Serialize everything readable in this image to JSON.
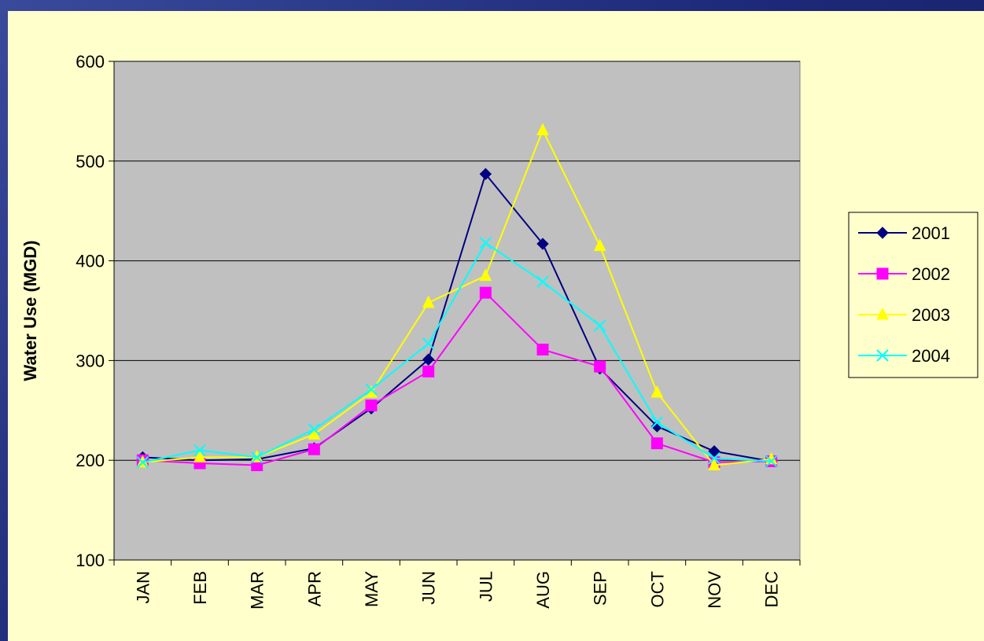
{
  "chart_data": {
    "type": "line",
    "title": "",
    "xlabel": "",
    "ylabel": "Water Use (MGD)",
    "categories": [
      "JAN",
      "FEB",
      "MAR",
      "APR",
      "MAY",
      "JUN",
      "JUL",
      "AUG",
      "SEP",
      "OCT",
      "NOV",
      "DEC"
    ],
    "ylim": [
      100,
      600
    ],
    "yticks": [
      "100",
      "200",
      "300",
      "400",
      "500",
      "600"
    ],
    "grid": true,
    "legend_position": "right",
    "plot_background": "#c0c0c0",
    "series": [
      {
        "name": "2001",
        "color": "#000080",
        "marker": "diamond",
        "values": [
          203,
          200,
          201,
          212,
          252,
          301,
          487,
          417,
          292,
          234,
          209,
          199
        ]
      },
      {
        "name": "2002",
        "color": "#ff00ff",
        "marker": "square",
        "values": [
          200,
          197,
          195,
          211,
          255,
          289,
          368,
          311,
          294,
          217,
          198,
          199
        ]
      },
      {
        "name": "2003",
        "color": "#ffff00",
        "marker": "triangle",
        "values": [
          198,
          203,
          203,
          226,
          268,
          358,
          385,
          531,
          415,
          268,
          195,
          201
        ]
      },
      {
        "name": "2004",
        "color": "#00ffff",
        "marker": "x",
        "values": [
          198,
          210,
          203,
          231,
          271,
          317,
          418,
          379,
          335,
          238,
          202,
          199
        ]
      }
    ]
  }
}
